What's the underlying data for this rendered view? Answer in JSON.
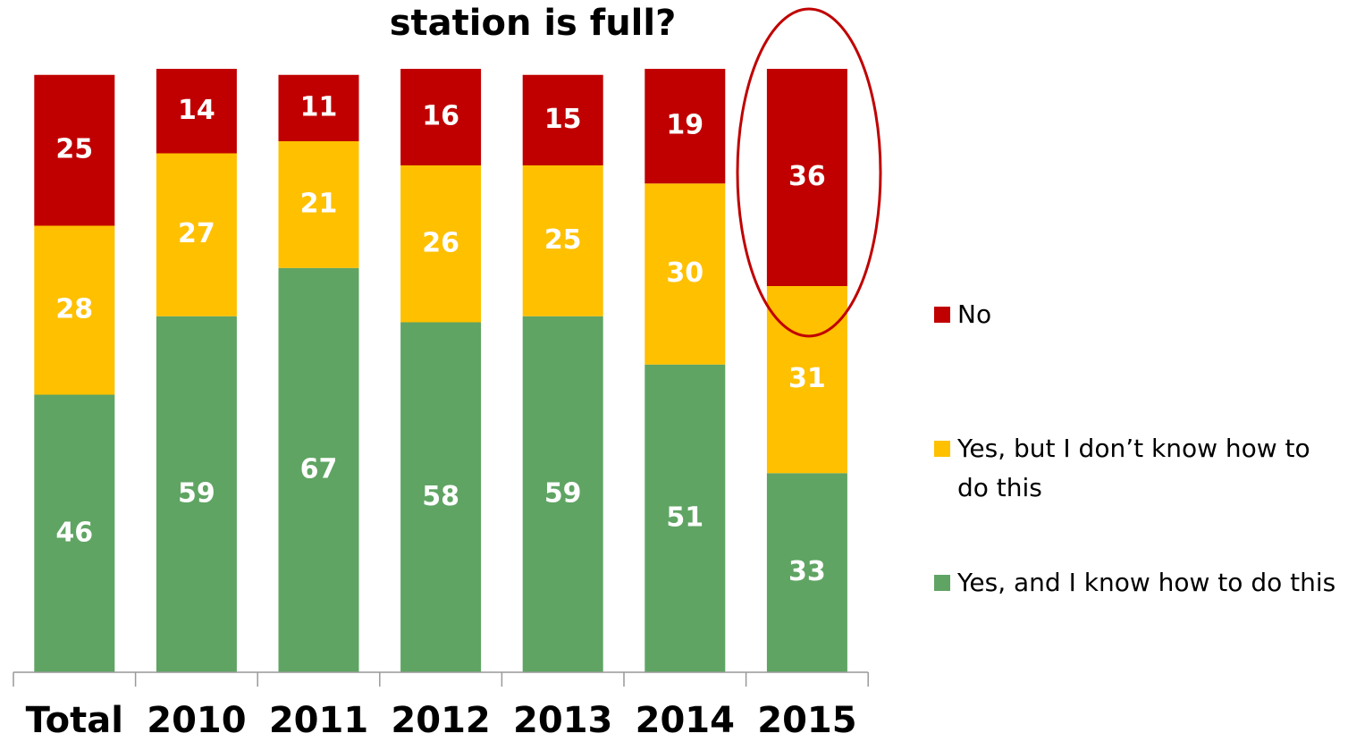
{
  "chart_data": {
    "type": "stacked_bar",
    "title": "station is full?",
    "categories": [
      "Total",
      "2010",
      "2011",
      "2012",
      "2013",
      "2014",
      "2015"
    ],
    "series": [
      {
        "name": "No",
        "color": "#c00000",
        "values": [
          25,
          14,
          11,
          16,
          15,
          19,
          36
        ]
      },
      {
        "name": "Yes, but I don’t know how to do this",
        "color": "#ffc000",
        "values": [
          28,
          27,
          21,
          26,
          25,
          30,
          31
        ]
      },
      {
        "name": "Yes, and I know how to do this",
        "color": "#5fa463",
        "values": [
          46,
          59,
          67,
          58,
          59,
          51,
          33
        ]
      }
    ],
    "ylim": [
      0,
      100
    ],
    "legend": "right"
  }
}
